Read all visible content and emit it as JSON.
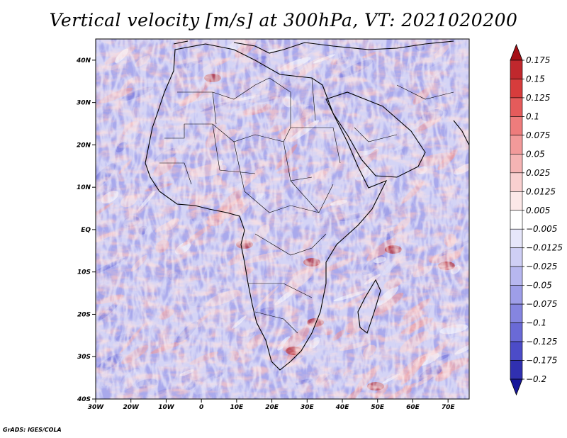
{
  "title": "Vertical velocity [m/s] at 300hPa, VT: 2021020200",
  "credit": "GrADS: IGES/COLA",
  "chart_data": {
    "type": "heatmap",
    "title": "Vertical velocity [m/s] at 300hPa, VT: 2021020200",
    "variable": "Vertical velocity",
    "units": "m/s",
    "level": "300hPa",
    "valid_time": "2021020200",
    "lon_range": [
      -30,
      76
    ],
    "lat_range": [
      -40,
      45
    ],
    "x_ticks": [
      {
        "value": -30,
        "label": "30W"
      },
      {
        "value": -20,
        "label": "20W"
      },
      {
        "value": -10,
        "label": "10W"
      },
      {
        "value": 0,
        "label": "0"
      },
      {
        "value": 10,
        "label": "10E"
      },
      {
        "value": 20,
        "label": "20E"
      },
      {
        "value": 30,
        "label": "30E"
      },
      {
        "value": 40,
        "label": "40E"
      },
      {
        "value": 50,
        "label": "50E"
      },
      {
        "value": 60,
        "label": "60E"
      },
      {
        "value": 70,
        "label": "70E"
      }
    ],
    "y_ticks": [
      {
        "value": 40,
        "label": "40N"
      },
      {
        "value": 30,
        "label": "30N"
      },
      {
        "value": 20,
        "label": "20N"
      },
      {
        "value": 10,
        "label": "10N"
      },
      {
        "value": 0,
        "label": "EQ"
      },
      {
        "value": -10,
        "label": "10S"
      },
      {
        "value": -20,
        "label": "20S"
      },
      {
        "value": -30,
        "label": "30S"
      },
      {
        "value": -40,
        "label": "40S"
      }
    ],
    "colorbar": {
      "levels": [
        "0.175",
        "0.15",
        "0.125",
        "0.1",
        "0.075",
        "0.05",
        "0.025",
        "0.0125",
        "0.005",
        "−0.005",
        "−0.0125",
        "−0.025",
        "−0.05",
        "−0.075",
        "−0.1",
        "−0.125",
        "−0.175",
        "−0.2"
      ],
      "colors": [
        "#a50f15",
        "#c0282d",
        "#d73c3c",
        "#e55b5b",
        "#ee7c7c",
        "#f29a9a",
        "#f5b4b4",
        "#f9d0d0",
        "#fce8e8",
        "#ffffff",
        "#e6e6fa",
        "#cfcff5",
        "#b7b7ef",
        "#9e9ee8",
        "#8585e0",
        "#6a6ad6",
        "#4c4cc8",
        "#3030b0",
        "#16169a"
      ]
    }
  }
}
